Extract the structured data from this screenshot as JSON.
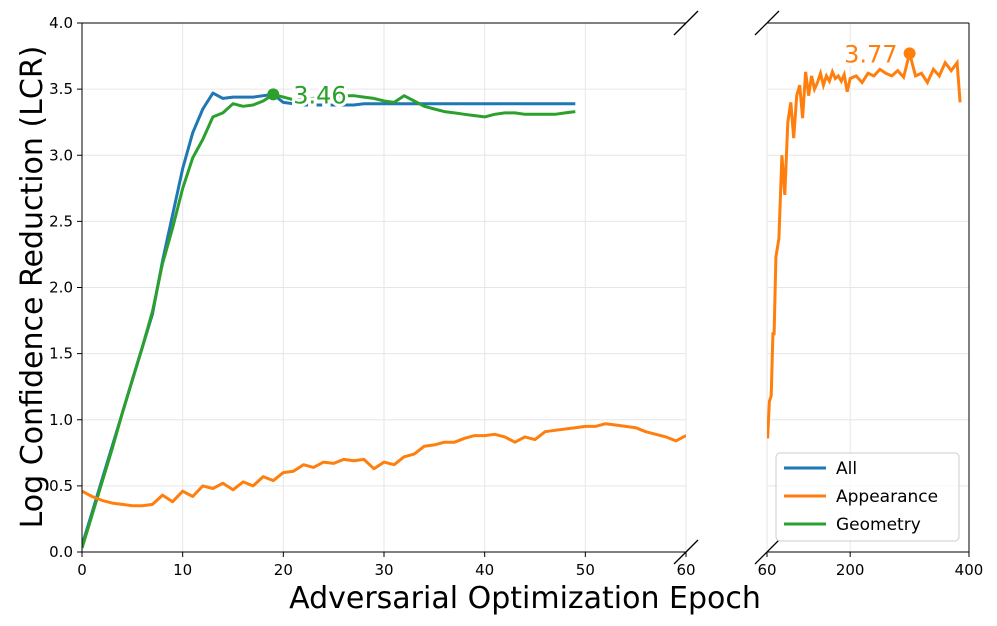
{
  "chart_data": {
    "type": "line",
    "xlabel": "Adversarial Optimization Epoch",
    "ylabel": "Log Confidence Reduction (LCR)",
    "ylim": [
      0,
      4
    ],
    "yticks": [
      "0.0",
      "0.5",
      "1.0",
      "1.5",
      "2.0",
      "2.5",
      "3.0",
      "3.5",
      "4.0"
    ],
    "grid": true,
    "broken_x_axis": true,
    "left_panel": {
      "xlim": [
        0,
        60
      ],
      "xticks": [
        "0",
        "10",
        "20",
        "30",
        "40",
        "50",
        "60"
      ]
    },
    "right_panel": {
      "xlim": [
        60,
        400
      ],
      "xticks": [
        "60",
        "200",
        "400"
      ]
    },
    "legend": {
      "position": "lower-right",
      "entries": [
        "All",
        "Appearance",
        "Geometry"
      ]
    },
    "colors": {
      "All": "#1f77b4",
      "Appearance": "#ff7f0e",
      "Geometry": "#2ca02c"
    },
    "annotations": [
      {
        "label": "3.46",
        "series": "Geometry",
        "x": 19,
        "y": 3.46
      },
      {
        "label": "3.77",
        "series": "Appearance",
        "x": 300,
        "y": 3.77
      }
    ],
    "series": [
      {
        "name": "All",
        "x": [
          0,
          1,
          2,
          3,
          4,
          5,
          6,
          7,
          8,
          9,
          10,
          11,
          12,
          13,
          14,
          15,
          16,
          17,
          18,
          19,
          20,
          21,
          22,
          23,
          24,
          25,
          26,
          27,
          28,
          29,
          30,
          31,
          32,
          33,
          34,
          35,
          36,
          37,
          38,
          39,
          40,
          41,
          42,
          43,
          44,
          45,
          46,
          47,
          48,
          49
        ],
        "y": [
          0.05,
          0.3,
          0.55,
          0.8,
          1.05,
          1.3,
          1.55,
          1.8,
          2.2,
          2.55,
          2.9,
          3.17,
          3.35,
          3.47,
          3.43,
          3.44,
          3.44,
          3.44,
          3.45,
          3.46,
          3.4,
          3.39,
          3.38,
          3.38,
          3.38,
          3.38,
          3.38,
          3.38,
          3.39,
          3.39,
          3.39,
          3.39,
          3.39,
          3.39,
          3.39,
          3.39,
          3.39,
          3.39,
          3.39,
          3.39,
          3.39,
          3.39,
          3.39,
          3.39,
          3.39,
          3.39,
          3.39,
          3.39,
          3.39,
          3.39
        ]
      },
      {
        "name": "Geometry",
        "x": [
          0,
          1,
          2,
          3,
          4,
          5,
          6,
          7,
          8,
          9,
          10,
          11,
          12,
          13,
          14,
          15,
          16,
          17,
          18,
          19,
          20,
          21,
          22,
          23,
          24,
          25,
          26,
          27,
          28,
          29,
          30,
          31,
          32,
          33,
          34,
          35,
          36,
          37,
          38,
          39,
          40,
          41,
          42,
          43,
          44,
          45,
          46,
          47,
          48,
          49
        ],
        "y": [
          0.03,
          0.28,
          0.53,
          0.78,
          1.05,
          1.3,
          1.55,
          1.82,
          2.18,
          2.45,
          2.75,
          2.98,
          3.12,
          3.29,
          3.32,
          3.39,
          3.37,
          3.38,
          3.41,
          3.46,
          3.44,
          3.42,
          3.42,
          3.43,
          3.44,
          3.45,
          3.45,
          3.45,
          3.44,
          3.43,
          3.41,
          3.4,
          3.45,
          3.41,
          3.37,
          3.35,
          3.33,
          3.32,
          3.31,
          3.3,
          3.29,
          3.31,
          3.32,
          3.32,
          3.31,
          3.31,
          3.31,
          3.31,
          3.32,
          3.33
        ]
      },
      {
        "name": "Appearance",
        "x": [
          0,
          1,
          2,
          3,
          4,
          5,
          6,
          7,
          8,
          9,
          10,
          11,
          12,
          13,
          14,
          15,
          16,
          17,
          18,
          19,
          20,
          21,
          22,
          23,
          24,
          25,
          26,
          27,
          28,
          29,
          30,
          31,
          32,
          33,
          34,
          35,
          36,
          37,
          38,
          39,
          40,
          41,
          42,
          43,
          44,
          45,
          46,
          47,
          48,
          49,
          50,
          51,
          52,
          53,
          54,
          55,
          56,
          57,
          58,
          59,
          60,
          61,
          64,
          67,
          70,
          72,
          75,
          80,
          85,
          90,
          95,
          100,
          105,
          110,
          115,
          120,
          125,
          130,
          135,
          140,
          145,
          150,
          155,
          160,
          165,
          170,
          175,
          180,
          185,
          190,
          195,
          200,
          210,
          220,
          230,
          240,
          250,
          260,
          270,
          280,
          290,
          300,
          310,
          320,
          330,
          340,
          350,
          360,
          370,
          380,
          385
        ],
        "y": [
          0.46,
          0.42,
          0.39,
          0.37,
          0.36,
          0.35,
          0.35,
          0.36,
          0.43,
          0.38,
          0.46,
          0.42,
          0.5,
          0.48,
          0.52,
          0.47,
          0.53,
          0.5,
          0.57,
          0.54,
          0.6,
          0.61,
          0.66,
          0.64,
          0.68,
          0.67,
          0.7,
          0.69,
          0.7,
          0.63,
          0.68,
          0.66,
          0.72,
          0.74,
          0.8,
          0.81,
          0.83,
          0.83,
          0.86,
          0.88,
          0.88,
          0.89,
          0.87,
          0.83,
          0.87,
          0.85,
          0.91,
          0.92,
          0.93,
          0.94,
          0.95,
          0.95,
          0.97,
          0.96,
          0.95,
          0.94,
          0.91,
          0.89,
          0.87,
          0.84,
          0.88,
          0.86,
          1.14,
          1.18,
          1.65,
          1.65,
          2.23,
          2.37,
          3.0,
          2.7,
          3.25,
          3.4,
          3.13,
          3.45,
          3.53,
          3.28,
          3.63,
          3.45,
          3.6,
          3.5,
          3.55,
          3.62,
          3.53,
          3.6,
          3.56,
          3.63,
          3.58,
          3.6,
          3.56,
          3.61,
          3.48,
          3.58,
          3.6,
          3.55,
          3.62,
          3.6,
          3.65,
          3.62,
          3.6,
          3.64,
          3.59,
          3.77,
          3.6,
          3.62,
          3.55,
          3.65,
          3.6,
          3.7,
          3.64,
          3.7,
          3.4
        ]
      }
    ]
  }
}
